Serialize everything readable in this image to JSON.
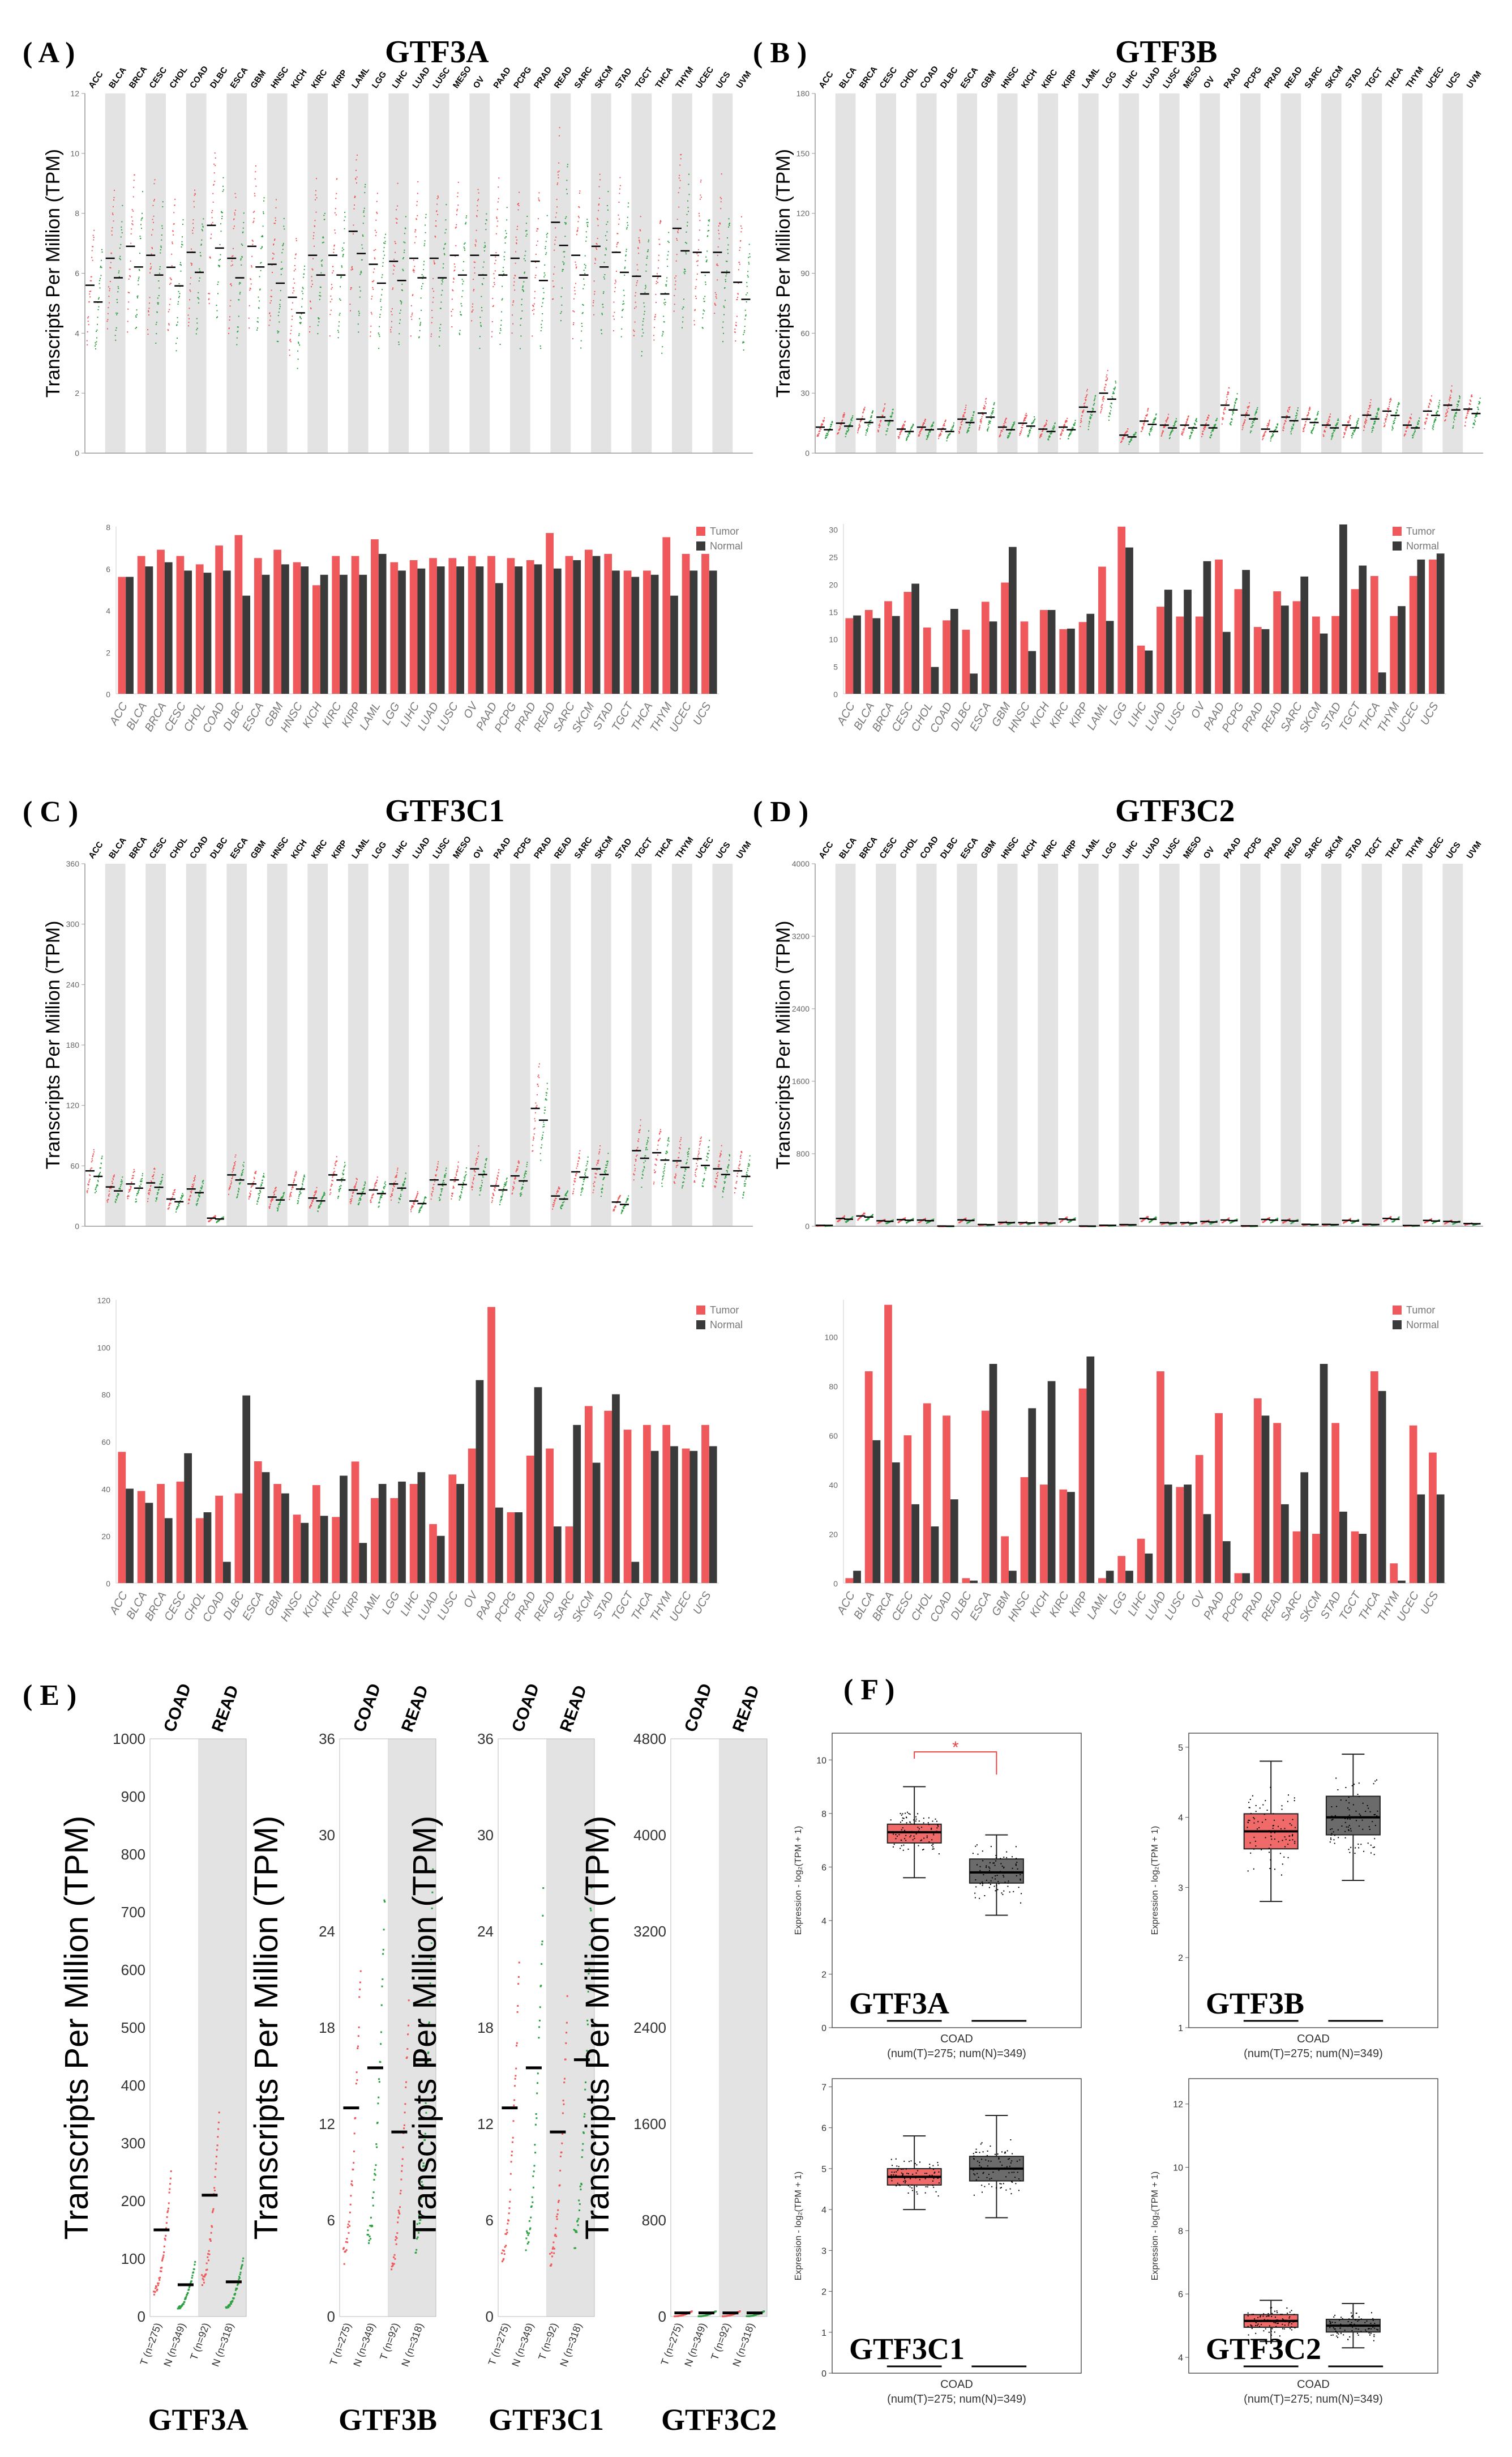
{
  "colors": {
    "tumor": "#f0595c",
    "normal": "#3a3a3a",
    "green": "#2ea043",
    "red": "#e84545",
    "band": "#e3e3e3",
    "box_tumor": "#f06a6a",
    "box_normal": "#6b6b6b"
  },
  "scatter_panels": [
    {
      "label": "( A )",
      "title": "GTF3A",
      "ylabel": "Transcripts Per Million (TPM)",
      "yticks": [
        "0",
        "2",
        "4",
        "6",
        "8",
        "10",
        "12"
      ],
      "cancers": [
        "ACC",
        "BLCA",
        "BRCA",
        "CESC",
        "CHOL",
        "COAD",
        "DLBC",
        "ESCA",
        "GBM",
        "HNSC",
        "KICH",
        "KIRC",
        "KIRP",
        "LAML",
        "LGG",
        "LIHC",
        "LUAD",
        "LUSC",
        "MESO",
        "OV",
        "PAAD",
        "PCPG",
        "PRAD",
        "READ",
        "SARC",
        "SKCM",
        "STAD",
        "TGCT",
        "THCA",
        "THYM",
        "UCEC",
        "UCS",
        "UVM"
      ],
      "highlight_red": [
        "COAD",
        "DLBC",
        "OV",
        "PAAD",
        "READ",
        "STAD",
        "THYM"
      ],
      "highlight_green": []
    },
    {
      "label": "( B )",
      "title": "GTF3B",
      "ylabel": "Transcripts Per Million (TPM)",
      "yticks": [
        "0",
        "30",
        "60",
        "90",
        "120",
        "150",
        "180"
      ],
      "cancers": [
        "ACC",
        "BLCA",
        "BRCA",
        "CESC",
        "CHOL",
        "COAD",
        "DLBC",
        "ESCA",
        "GBM",
        "HNSC",
        "KICH",
        "KIRC",
        "KIRP",
        "LAML",
        "LGG",
        "LIHC",
        "LUAD",
        "LUSC",
        "MESO",
        "OV",
        "PAAD",
        "PCPG",
        "PRAD",
        "READ",
        "SARC",
        "SKCM",
        "STAD",
        "TGCT",
        "THCA",
        "THYM",
        "UCEC",
        "UCS",
        "UVM"
      ],
      "highlight_red": [
        "DLBC",
        "THYM"
      ],
      "highlight_green": [
        "TGCT"
      ]
    },
    {
      "label": "( C )",
      "title": "GTF3C1",
      "ylabel": "Transcripts Per Million (TPM)",
      "yticks": [
        "0",
        "60",
        "120",
        "180",
        "240",
        "300",
        "360"
      ],
      "cancers": [
        "ACC",
        "BLCA",
        "BRCA",
        "CESC",
        "CHOL",
        "COAD",
        "DLBC",
        "ESCA",
        "GBM",
        "HNSC",
        "KICH",
        "KIRC",
        "KIRP",
        "LAML",
        "LGG",
        "LIHC",
        "LUAD",
        "LUSC",
        "MESO",
        "OV",
        "PAAD",
        "PCPG",
        "PRAD",
        "READ",
        "SARC",
        "SKCM",
        "STAD",
        "TGCT",
        "THCA",
        "THYM",
        "UCEC",
        "UCS",
        "UVM"
      ],
      "highlight_red": [
        "DLBC",
        "THYM"
      ],
      "highlight_green": [
        "ESCA"
      ]
    },
    {
      "label": "( D )",
      "title": "GTF3C2",
      "ylabel": "Transcripts Per Million (TPM)",
      "yticks": [
        "0",
        "800",
        "1600",
        "2400",
        "3200",
        "4000"
      ],
      "cancers": [
        "ACC",
        "BLCA",
        "BRCA",
        "CESC",
        "CHOL",
        "COAD",
        "DLBC",
        "ESCA",
        "GBM",
        "HNSC",
        "KICH",
        "KIRC",
        "KIRP",
        "LAML",
        "LGG",
        "LIHC",
        "LUAD",
        "LUSC",
        "MESO",
        "OV",
        "PAAD",
        "PCPG",
        "PRAD",
        "READ",
        "SARC",
        "SKCM",
        "STAD",
        "TGCT",
        "THCA",
        "THYM",
        "UCEC",
        "UCS",
        "UVM"
      ],
      "highlight_red": [
        "DLBC",
        "THYM"
      ],
      "highlight_green": []
    }
  ],
  "legend": {
    "tumor": "Tumor",
    "normal": "Normal"
  },
  "chart_data": [
    {
      "type": "bar",
      "title": "GTF3A",
      "ylim": [
        0,
        8
      ],
      "yticks": [
        "0",
        "2",
        "4",
        "6",
        "8"
      ],
      "categories": [
        "ACC",
        "BLCA",
        "BRCA",
        "CESC",
        "CHOL",
        "COAD",
        "DLBC",
        "ESCA",
        "GBM",
        "HNSC",
        "KICH",
        "KIRC",
        "KIRP",
        "LAML",
        "LGG",
        "LIHC",
        "LUAD",
        "LUSC",
        "OV",
        "PAAD",
        "PCPG",
        "PRAD",
        "READ",
        "SARC",
        "SKCM",
        "STAD",
        "TGCT",
        "THCA",
        "THYM",
        "UCEC",
        "UCS"
      ],
      "series": [
        {
          "name": "Tumor",
          "values": [
            5.6,
            6.6,
            6.9,
            6.6,
            6.2,
            7.1,
            7.6,
            6.5,
            6.9,
            6.3,
            5.2,
            6.6,
            6.6,
            7.4,
            6.3,
            6.4,
            6.5,
            6.5,
            6.6,
            6.6,
            6.5,
            6.4,
            7.7,
            6.6,
            6.9,
            6.7,
            5.9,
            5.9,
            7.5,
            6.7,
            6.7
          ]
        },
        {
          "name": "Normal",
          "values": [
            5.6,
            6.1,
            6.3,
            5.9,
            5.8,
            5.9,
            4.7,
            5.7,
            6.2,
            6.1,
            5.7,
            5.7,
            5.7,
            6.7,
            5.9,
            6.0,
            6.1,
            6.1,
            6.1,
            5.3,
            6.1,
            6.2,
            6.0,
            6.4,
            6.6,
            5.9,
            5.6,
            5.7,
            4.7,
            5.9,
            5.9
          ]
        }
      ]
    },
    {
      "type": "bar",
      "title": "GTF3B",
      "ylim": [
        0,
        31
      ],
      "yticks": [
        "0",
        "5",
        "10",
        "15",
        "20",
        "25",
        "30"
      ],
      "categories": [
        "ACC",
        "BLCA",
        "BRCA",
        "CESC",
        "CHOL",
        "COAD",
        "DLBC",
        "ESCA",
        "GBM",
        "HNSC",
        "KICH",
        "KIRC",
        "KIRP",
        "LAML",
        "LGG",
        "LIHC",
        "LUAD",
        "LUSC",
        "OV",
        "PAAD",
        "PCPG",
        "PRAD",
        "READ",
        "SARC",
        "SKCM",
        "STAD",
        "TGCT",
        "THCA",
        "THYM",
        "UCEC",
        "UCS"
      ],
      "series": [
        {
          "name": "Tumor",
          "values": [
            13.8,
            15.3,
            16.9,
            18.6,
            12.1,
            13.4,
            11.7,
            16.8,
            20.3,
            13.2,
            15.3,
            11.8,
            13.1,
            23.2,
            30.5,
            8.8,
            15.9,
            14.1,
            14.1,
            24.5,
            19.1,
            12.2,
            18.7,
            16.9,
            14.1,
            14.2,
            19.1,
            21.5,
            14.2,
            21.5,
            24.5
          ]
        },
        {
          "name": "Normal",
          "values": [
            14.3,
            13.8,
            14.2,
            20.1,
            4.9,
            15.5,
            3.7,
            13.2,
            26.8,
            7.8,
            15.3,
            11.9,
            14.6,
            13.3,
            26.7,
            7.9,
            19.0,
            19.0,
            24.2,
            11.3,
            22.6,
            11.8,
            16.1,
            21.4,
            11.0,
            30.9,
            23.4,
            3.9,
            16.0,
            24.5,
            25.6
          ]
        }
      ]
    },
    {
      "type": "bar",
      "title": "GTF3C1",
      "ylim": [
        0,
        120
      ],
      "yticks": [
        "0",
        "20",
        "40",
        "60",
        "80",
        "100",
        "120"
      ],
      "categories": [
        "ACC",
        "BLCA",
        "BRCA",
        "CESC",
        "CHOL",
        "COAD",
        "DLBC",
        "ESCA",
        "GBM",
        "HNSC",
        "KICH",
        "KIRC",
        "KIRP",
        "LAML",
        "LGG",
        "LIHC",
        "LUAD",
        "LUSC",
        "OV",
        "PAAD",
        "PCPG",
        "PRAD",
        "READ",
        "SARC",
        "SKCM",
        "STAD",
        "TGCT",
        "THCA",
        "THYM",
        "UCEC",
        "UCS"
      ],
      "series": [
        {
          "name": "Tumor",
          "values": [
            55.6,
            39.0,
            42.0,
            43.0,
            27.5,
            37.0,
            38.0,
            51.6,
            42.0,
            29.0,
            41.5,
            28.0,
            51.5,
            36.0,
            36.0,
            42.0,
            25.0,
            46.0,
            57.0,
            117.0,
            30.0,
            54.0,
            57.0,
            24.0,
            75.0,
            73.0,
            65.0,
            67.0,
            67.0,
            57.0,
            67.0
          ]
        },
        {
          "name": "Normal",
          "values": [
            40.0,
            34.0,
            27.5,
            55.0,
            30.0,
            9.0,
            79.5,
            47.0,
            38.0,
            25.5,
            28.5,
            45.5,
            17.0,
            42.0,
            43.0,
            47.0,
            20.0,
            42.0,
            86.0,
            32.0,
            30.0,
            83.0,
            24.0,
            67.0,
            51.0,
            80.0,
            9.0,
            56.0,
            58.0,
            56.0,
            58.0
          ]
        }
      ]
    },
    {
      "type": "bar",
      "title": "GTF3C2",
      "ylim": [
        0,
        115
      ],
      "yticks": [
        "0",
        "20",
        "40",
        "60",
        "80",
        "100"
      ],
      "categories": [
        "ACC",
        "BLCA",
        "BRCA",
        "CESC",
        "CHOL",
        "COAD",
        "DLBC",
        "ESCA",
        "GBM",
        "HNSC",
        "KICH",
        "KIRC",
        "KIRP",
        "LAML",
        "LGG",
        "LIHC",
        "LUAD",
        "LUSC",
        "OV",
        "PAAD",
        "PCPG",
        "PRAD",
        "READ",
        "SARC",
        "SKCM",
        "STAD",
        "TGCT",
        "THCA",
        "THYM",
        "UCEC",
        "UCS"
      ],
      "series": [
        {
          "name": "Tumor",
          "values": [
            2.0,
            86.0,
            113.0,
            60.0,
            73.0,
            68.0,
            2.0,
            70.0,
            19.0,
            43.0,
            40.0,
            38.0,
            79.0,
            2.0,
            11.0,
            18.0,
            86.0,
            39.0,
            52.0,
            69.0,
            4.0,
            75.0,
            65.0,
            21.0,
            20.0,
            65.0,
            21.0,
            86.0,
            8.0,
            64.0,
            53.0
          ]
        },
        {
          "name": "Normal",
          "values": [
            5.0,
            58.0,
            49.0,
            32.0,
            23.0,
            34.0,
            1.0,
            89.0,
            5.0,
            71.0,
            82.0,
            37.0,
            92.0,
            5.0,
            5.0,
            12.0,
            40.0,
            40.0,
            28.0,
            17.0,
            4.0,
            68.0,
            32.0,
            45.0,
            89.0,
            29.0,
            20.0,
            78.0,
            1.0,
            36.0,
            36.0
          ]
        }
      ]
    }
  ],
  "panel_e": {
    "label": "( E )",
    "ylabel": "Transcripts Per Million (TPM)",
    "cancers": [
      "COAD",
      "READ"
    ],
    "xticks": [
      "T (n=275)",
      "N (n=349)",
      "T (n=92)",
      "N (n=318)"
    ],
    "plots": [
      {
        "gene": "GTF3A",
        "yticks": [
          "0",
          "100",
          "200",
          "300",
          "400",
          "500",
          "600",
          "700",
          "800",
          "900",
          "1000"
        ],
        "cancer_color": "red"
      },
      {
        "gene": "GTF3B",
        "yticks": [
          "0",
          "6",
          "12",
          "18",
          "24",
          "30",
          "36"
        ],
        "cancer_color": "black"
      },
      {
        "gene": "GTF3C1",
        "yticks": [
          "0",
          "6",
          "12",
          "18",
          "24",
          "30",
          "36"
        ],
        "cancer_color": "black"
      },
      {
        "gene": "GTF3C2",
        "yticks": [
          "0",
          "800",
          "1600",
          "2400",
          "3200",
          "4000",
          "4800"
        ],
        "cancer_color": "black"
      }
    ]
  },
  "panel_f": {
    "label": "( F )",
    "ylabel": "Expression - log₂(TPM + 1)",
    "xlabel": "COAD",
    "caption": "(num(T)=275; num(N)=349)",
    "significance": "*",
    "boxes": [
      {
        "gene": "GTF3A",
        "yticks": [
          "0",
          "2",
          "4",
          "6",
          "8",
          "10"
        ],
        "tumor": [
          7.3,
          6.9,
          7.6,
          5.6,
          9.0
        ],
        "normal": [
          5.8,
          5.4,
          6.3,
          4.2,
          7.2
        ]
      },
      {
        "gene": "GTF3B",
        "yticks": [
          "1",
          "2",
          "3",
          "4",
          "5"
        ],
        "tumor": [
          3.8,
          3.55,
          4.05,
          2.8,
          4.8
        ],
        "normal": [
          4.0,
          3.75,
          4.3,
          3.1,
          4.9
        ]
      },
      {
        "gene": "GTF3C1",
        "yticks": [
          "0",
          "1",
          "2",
          "3",
          "4",
          "5",
          "6",
          "7"
        ],
        "tumor": [
          4.8,
          4.6,
          5.0,
          4.0,
          5.8
        ],
        "normal": [
          5.0,
          4.7,
          5.3,
          3.8,
          6.3
        ]
      },
      {
        "gene": "GTF3C2",
        "yticks": [
          "4",
          "6",
          "8",
          "10",
          "12"
        ],
        "tumor": [
          5.15,
          4.95,
          5.35,
          4.5,
          5.8
        ],
        "normal": [
          5.0,
          4.8,
          5.2,
          4.3,
          5.7
        ]
      }
    ]
  }
}
